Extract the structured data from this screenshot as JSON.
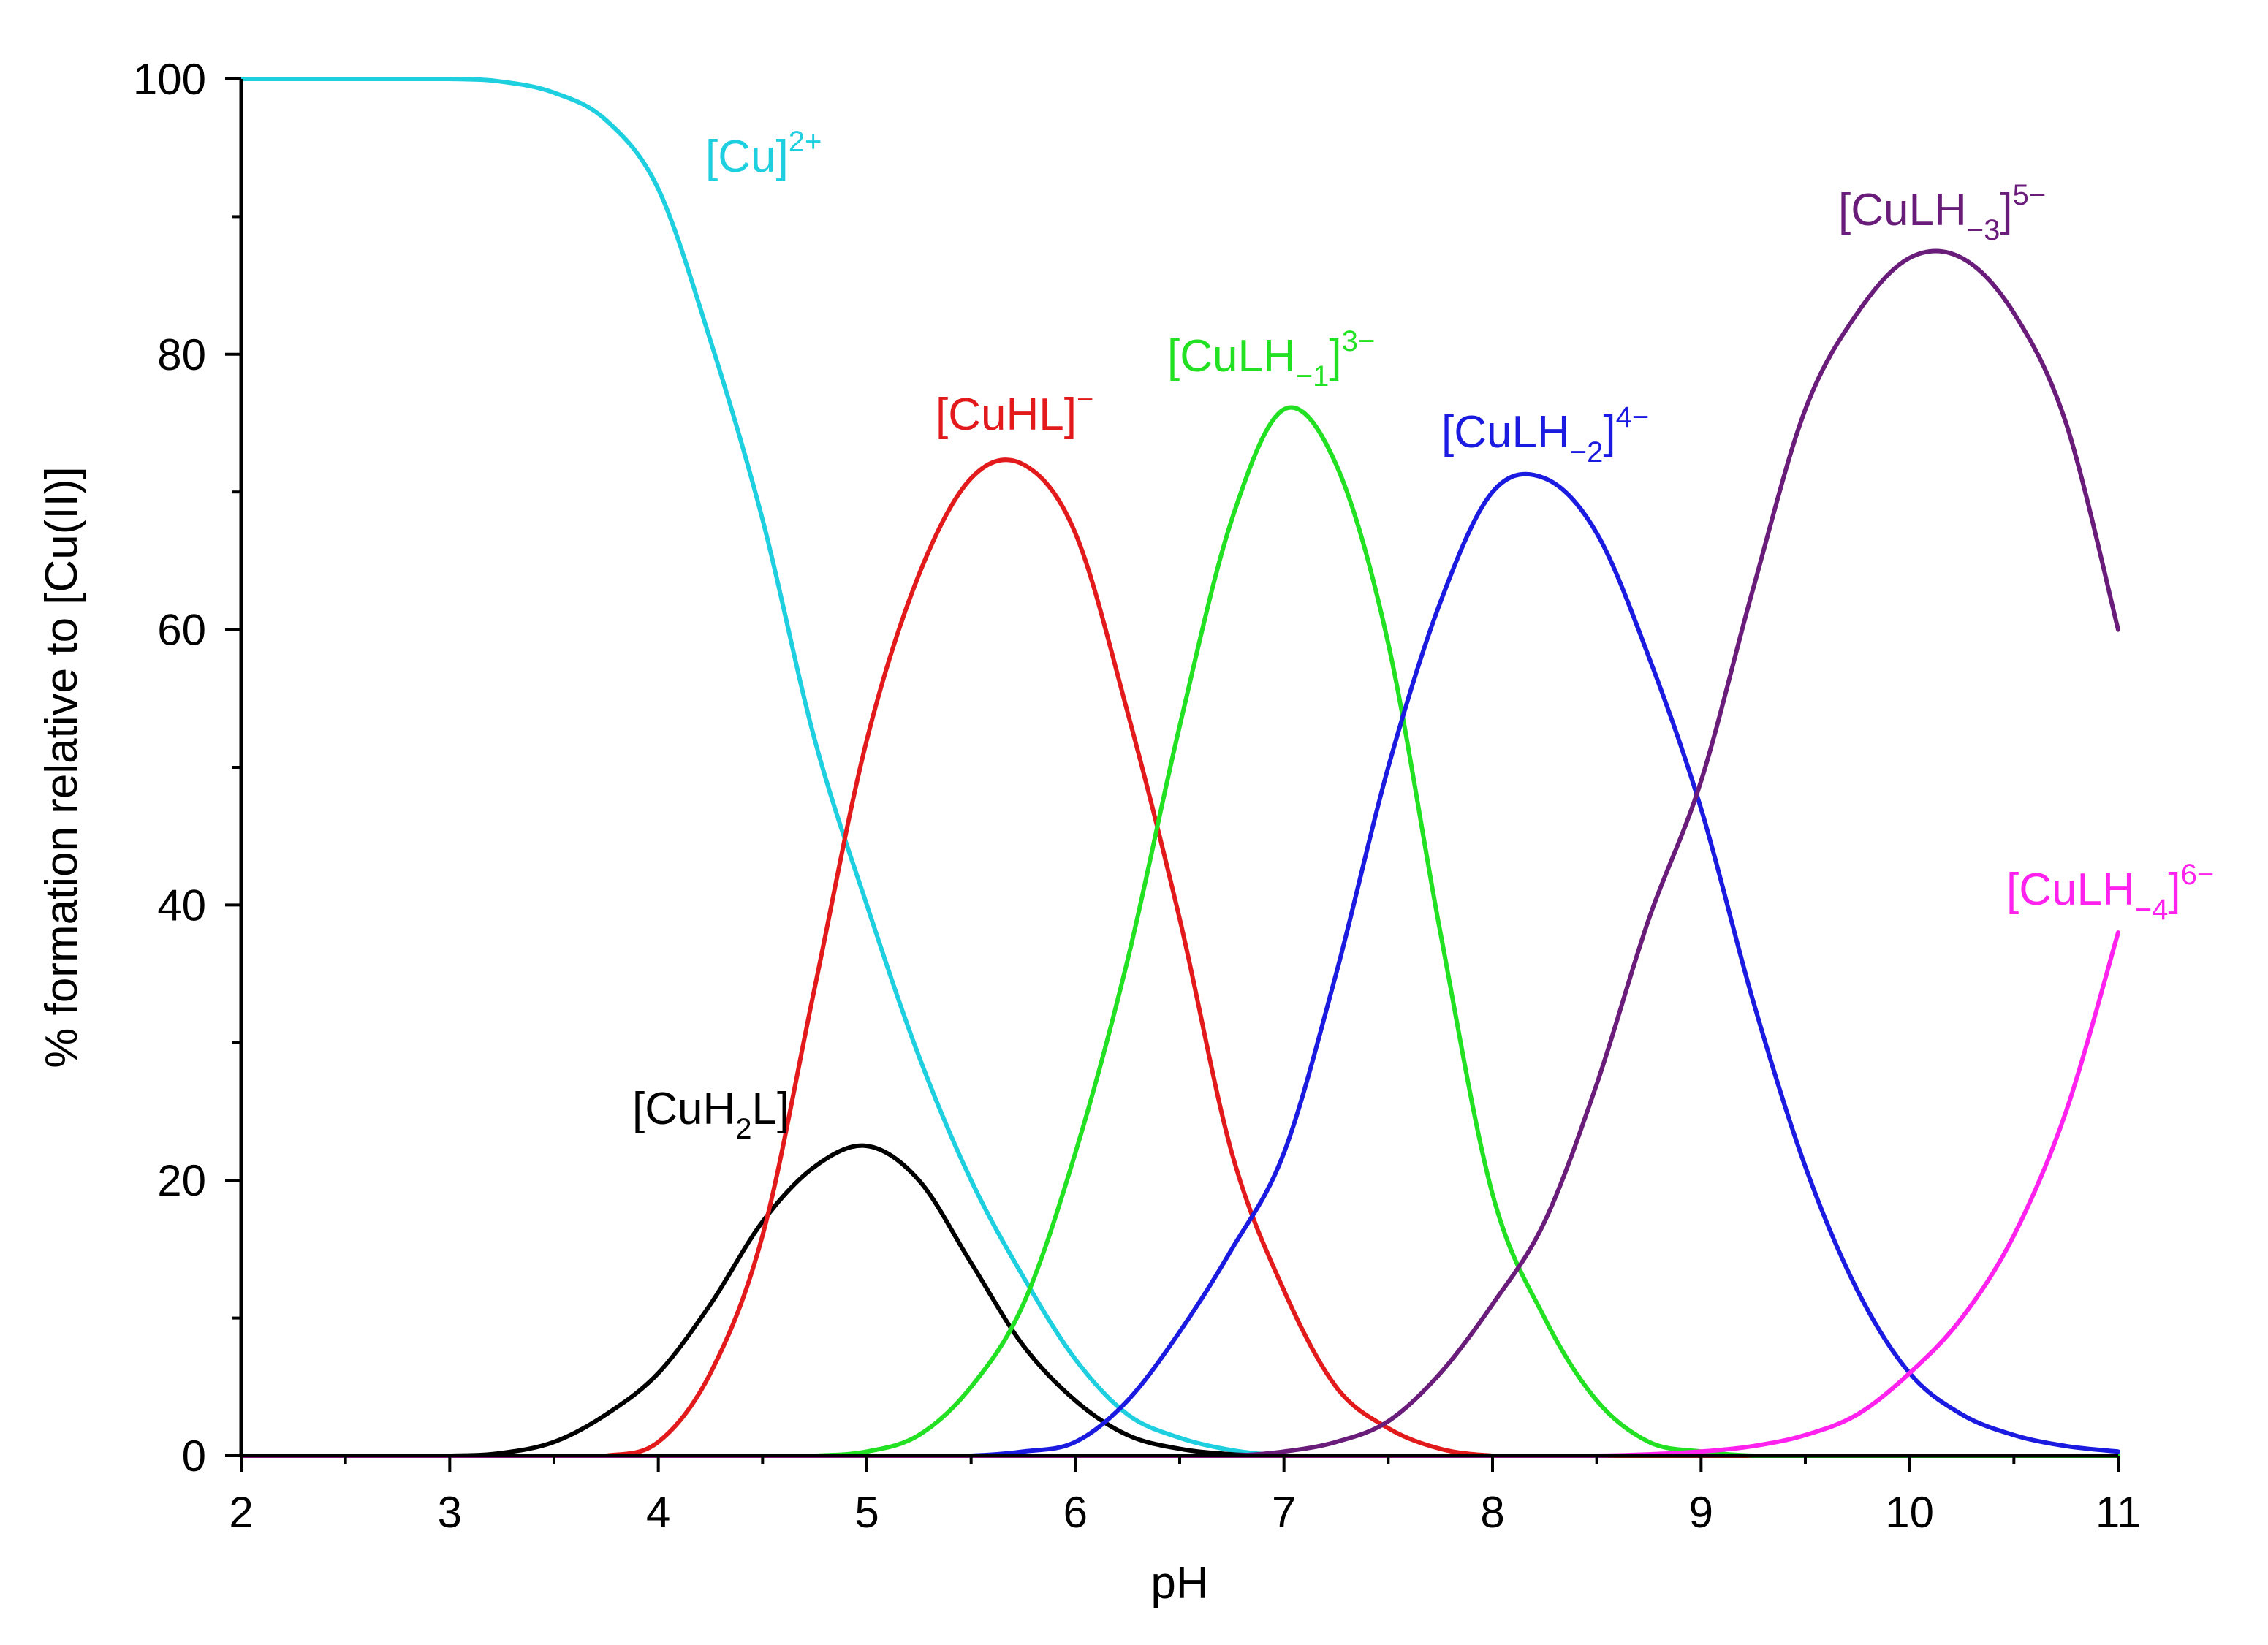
{
  "chart_data": {
    "type": "line",
    "xlabel": "pH",
    "ylabel": "% formation relative to [Cu(II)]",
    "xlim": [
      2,
      11
    ],
    "ylim": [
      0,
      100
    ],
    "x_ticks": [
      "2",
      "3",
      "4",
      "5",
      "6",
      "7",
      "8",
      "9",
      "10",
      "11"
    ],
    "y_ticks": [
      "0",
      "20",
      "40",
      "60",
      "80",
      "100"
    ],
    "x": [
      2.0,
      2.5,
      3.0,
      3.25,
      3.5,
      3.75,
      4.0,
      4.25,
      4.5,
      4.75,
      5.0,
      5.25,
      5.5,
      5.75,
      6.0,
      6.25,
      6.5,
      6.75,
      7.0,
      7.25,
      7.5,
      7.75,
      8.0,
      8.25,
      8.5,
      8.75,
      9.0,
      9.25,
      9.5,
      9.75,
      10.0,
      10.25,
      10.5,
      10.75,
      11.0
    ],
    "series": [
      {
        "name": "[Cu]2+",
        "label": {
          "base": "[Cu]",
          "sub": "",
          "after": "",
          "sup": "2+"
        },
        "color": "#1ecfe0",
        "values": [
          100,
          100,
          100,
          99.8,
          99,
          97,
          92,
          81,
          68,
          52,
          40,
          29,
          20,
          13,
          7,
          3,
          1.3,
          0.4,
          0,
          0,
          0,
          0,
          0,
          0,
          0,
          0,
          0,
          0,
          0,
          0,
          0,
          0,
          0,
          0,
          0
        ]
      },
      {
        "name": "[CuH2L]",
        "label": {
          "base": "[CuH",
          "sub": "2",
          "after": "L]",
          "sup": ""
        },
        "color": "#000000",
        "values": [
          0,
          0,
          0,
          0.2,
          1,
          3,
          6,
          11,
          17,
          21,
          22.5,
          20,
          14,
          8,
          4,
          1.5,
          0.5,
          0.1,
          0,
          0,
          0,
          0,
          0,
          0,
          0,
          0,
          0,
          0,
          0,
          0,
          0,
          0,
          0,
          0,
          0
        ]
      },
      {
        "name": "[CuHL]-",
        "label": {
          "base": "[CuHL]",
          "sub": "",
          "after": "",
          "sup": "−"
        },
        "color": "#e31a1c",
        "values": [
          0,
          0,
          0,
          0,
          0,
          0,
          1,
          6,
          16,
          34,
          52,
          64,
          71,
          72,
          67,
          54,
          39,
          22,
          12,
          5,
          2,
          0.5,
          0,
          0,
          0,
          0,
          0,
          0,
          0,
          0,
          0,
          0,
          0,
          0,
          0
        ]
      },
      {
        "name": "[CuLH-1]3-",
        "label": {
          "base": "[CuLH",
          "sub": "−1",
          "after": "]",
          "sup": "3−"
        },
        "color": "#22e022",
        "values": [
          0,
          0,
          0,
          0,
          0,
          0,
          0,
          0,
          0,
          0,
          0.3,
          1.5,
          5,
          11,
          22,
          36,
          53,
          68,
          76,
          72,
          59,
          38,
          19,
          10,
          4,
          1,
          0.3,
          0,
          0,
          0,
          0,
          0,
          0,
          0,
          0
        ]
      },
      {
        "name": "[CuLH-2]4-",
        "label": {
          "base": "[CuLH",
          "sub": "−2",
          "after": "]",
          "sup": "4−"
        },
        "color": "#1a1ae0",
        "values": [
          0,
          0,
          0,
          0,
          0,
          0,
          0,
          0,
          0,
          0,
          0,
          0,
          0,
          0.3,
          1,
          4,
          9,
          15,
          22,
          35,
          50,
          62,
          70,
          71,
          67,
          58,
          47,
          33,
          21,
          12,
          6,
          3,
          1.5,
          0.7,
          0.3
        ]
      },
      {
        "name": "[CuLH-3]5-",
        "label": {
          "base": "[CuLH",
          "sub": "−3",
          "after": "]",
          "sup": "5−"
        },
        "color": "#6a1c7a",
        "values": [
          0,
          0,
          0,
          0,
          0,
          0,
          0,
          0,
          0,
          0,
          0,
          0,
          0,
          0,
          0,
          0,
          0,
          0,
          0.3,
          1,
          2.5,
          6,
          11,
          17,
          27,
          39,
          49,
          63,
          76,
          83,
          87,
          87,
          83,
          75,
          60
        ]
      },
      {
        "name": "[CuLH-4]6-",
        "label": {
          "base": "[CuLH",
          "sub": "−4",
          "after": "]",
          "sup": "6−"
        },
        "color": "#ff22ee",
        "values": [
          0,
          0,
          0,
          0,
          0,
          0,
          0,
          0,
          0,
          0,
          0,
          0,
          0,
          0,
          0,
          0,
          0,
          0,
          0,
          0,
          0,
          0,
          0,
          0,
          0,
          0.1,
          0.3,
          0.7,
          1.5,
          3,
          6,
          10,
          16,
          25,
          38
        ]
      }
    ]
  }
}
